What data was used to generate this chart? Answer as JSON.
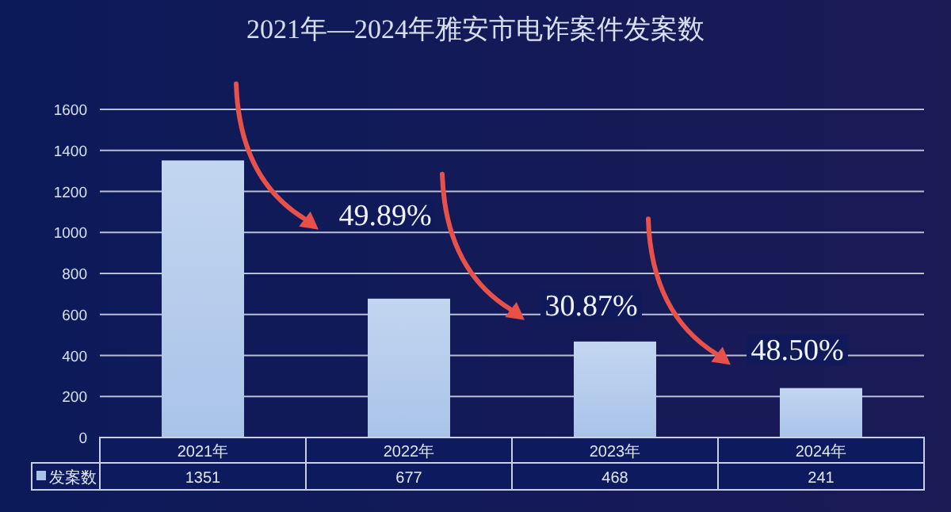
{
  "chart_data": {
    "type": "bar",
    "title": "2021年—2024年雅安市电诈案件发案数",
    "categories": [
      "2021年",
      "2022年",
      "2023年",
      "2024年"
    ],
    "series": [
      {
        "name": "发案数",
        "color": "#a9c3e8",
        "values": [
          1351,
          677,
          468,
          241
        ]
      }
    ],
    "ylim": [
      0,
      1600
    ],
    "yticks": [
      0,
      200,
      400,
      600,
      800,
      1000,
      1200,
      1400,
      1600
    ],
    "grid": "y",
    "data_labels": true,
    "legend": "bottom",
    "annotations": [
      "49.89%",
      "30.87%",
      "48.50%"
    ]
  }
}
